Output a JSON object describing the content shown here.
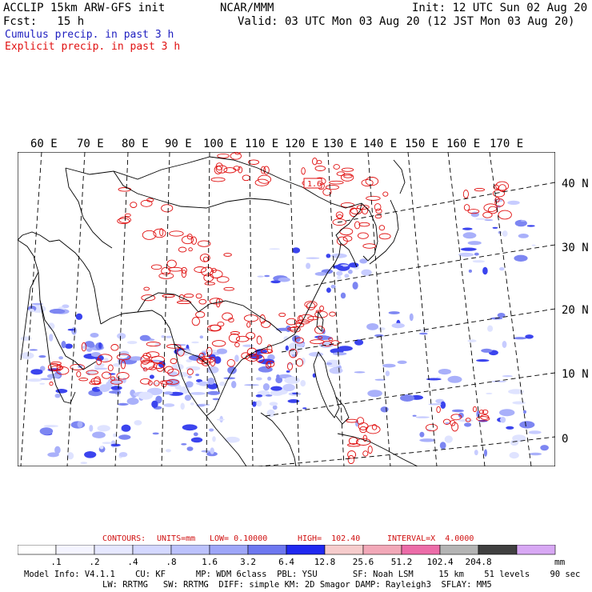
{
  "header": {
    "line1_left": "ACCLIP 15km ARW-GFS init",
    "line1_center": "NCAR/MMM",
    "line1_right": "Init: 12 UTC Sun 02 Aug 20",
    "line2_left": "Fcst:   15 h",
    "line2_right": "Valid: 03 UTC Mon 03 Aug 20 (12 JST Mon 03 Aug 20)",
    "legend_cumulus": "Cumulus precip. in past 3 h",
    "legend_explicit": "Explicit precip. in past 3 h"
  },
  "map": {
    "lon_labels": [
      "60 E",
      "70 E",
      "80 E",
      "90 E",
      "100 E",
      "110 E",
      "120 E",
      "130 E",
      "140 E",
      "150 E",
      "160 E",
      "170 E"
    ],
    "lat_labels": [
      "40 N",
      "30 N",
      "20 N",
      "10 N",
      "0"
    ],
    "box_label": "1.6",
    "colors": {
      "cumulus": "#2030e0",
      "explicit": "#e01010",
      "coast": "#000000",
      "grid": "#000000"
    }
  },
  "contour_info": {
    "contours": "CONTOURS:",
    "units": "UNITS=mm",
    "low": "LOW= 0.10000",
    "high": "HIGH=  102.40",
    "interval": "INTERVAL=X  4.0000"
  },
  "colorbar": {
    "colors": [
      "#ffffff",
      "#f4f4ff",
      "#e6e8ff",
      "#d4d8ff",
      "#bcc2fc",
      "#9ea6f8",
      "#6e78f0",
      "#2028f0",
      "#f6cccc",
      "#f2a8b8",
      "#ec6ca8",
      "#b4b4b4",
      "#404040",
      "#d8a8f4"
    ],
    "ticks": [
      ".1",
      ".2",
      ".4",
      ".8",
      "1.6",
      "3.2",
      "6.4",
      "12.8",
      "25.6",
      "51.2",
      "102.4",
      "204.8"
    ],
    "unit": "mm"
  },
  "footer": {
    "line1": "Model Info: V4.1.1    CU: KF      MP: WDM 6class  PBL: YSU       SF: Noah LSM     15 km    51 levels    90 sec",
    "line2": "LW: RRTMG   SW: RRTMG  DIFF: simple KM: 2D Smagor DAMP: Rayleigh3  SFLAY: MM5"
  }
}
